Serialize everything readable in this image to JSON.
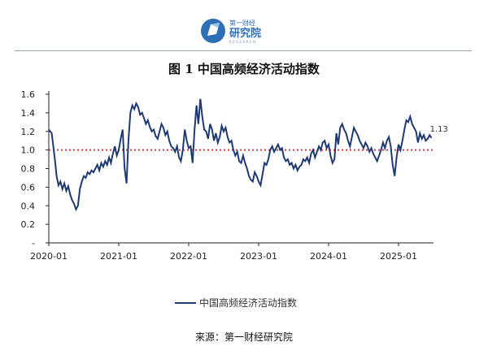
{
  "header": {
    "logo_line1": "第一财经",
    "logo_line2": "研究院",
    "logo_line3": "RESEARCH",
    "title": "图 1  中国高频经济活动指数"
  },
  "footer": {
    "source": "来源：第一财经研究院"
  },
  "colors": {
    "series": "#1f3a73",
    "reference": "#d0393e",
    "logo_blue": "#2e6fb7"
  },
  "chart_data": {
    "type": "line",
    "title": "图 1  中国高频经济活动指数",
    "xlabel": "",
    "ylabel": "",
    "x_ticks": [
      "2020-01",
      "2021-01",
      "2022-01",
      "2023-01",
      "2024-01",
      "2025-01"
    ],
    "y_ticks": [
      "-",
      "0.2",
      "0.4",
      "0.6",
      "0.8",
      "1.0",
      "1.2",
      "1.4",
      "1.6"
    ],
    "ylim": [
      0,
      1.6
    ],
    "x_range": [
      "2020-01",
      "2025-07"
    ],
    "reference_line": {
      "value": 1.0,
      "style": "dotted"
    },
    "end_label": "1.13",
    "legend": {
      "position": "bottom-center"
    },
    "grid": false,
    "series": [
      {
        "name": "中国高频经济活动指数",
        "points": [
          [
            "2020-01",
            1.22
          ],
          [
            "2020-01",
            1.18
          ],
          [
            "2020-02",
            0.92
          ],
          [
            "2020-02",
            0.72
          ],
          [
            "2020-02",
            0.62
          ],
          [
            "2020-03",
            0.66
          ],
          [
            "2020-03",
            0.58
          ],
          [
            "2020-03",
            0.64
          ],
          [
            "2020-04",
            0.56
          ],
          [
            "2020-04",
            0.61
          ],
          [
            "2020-04",
            0.52
          ],
          [
            "2020-05",
            0.46
          ],
          [
            "2020-05",
            0.42
          ],
          [
            "2020-05",
            0.36
          ],
          [
            "2020-06",
            0.4
          ],
          [
            "2020-06",
            0.58
          ],
          [
            "2020-06",
            0.66
          ],
          [
            "2020-07",
            0.72
          ],
          [
            "2020-07",
            0.7
          ],
          [
            "2020-07",
            0.76
          ],
          [
            "2020-08",
            0.74
          ],
          [
            "2020-08",
            0.78
          ],
          [
            "2020-08",
            0.76
          ],
          [
            "2020-09",
            0.8
          ],
          [
            "2020-09",
            0.84
          ],
          [
            "2020-09",
            0.78
          ],
          [
            "2020-10",
            0.86
          ],
          [
            "2020-10",
            0.82
          ],
          [
            "2020-10",
            0.88
          ],
          [
            "2020-11",
            0.84
          ],
          [
            "2020-11",
            0.92
          ],
          [
            "2020-11",
            0.86
          ],
          [
            "2020-12",
            0.96
          ],
          [
            "2020-12",
            1.04
          ],
          [
            "2020-12",
            0.94
          ],
          [
            "2021-01",
            1.0
          ],
          [
            "2021-01",
            1.12
          ],
          [
            "2021-01",
            1.22
          ],
          [
            "2021-02",
            0.8
          ],
          [
            "2021-02",
            0.64
          ],
          [
            "2021-02",
            1.1
          ],
          [
            "2021-03",
            1.4
          ],
          [
            "2021-03",
            1.48
          ],
          [
            "2021-03",
            1.44
          ],
          [
            "2021-04",
            1.5
          ],
          [
            "2021-04",
            1.46
          ],
          [
            "2021-04",
            1.38
          ],
          [
            "2021-05",
            1.4
          ],
          [
            "2021-05",
            1.34
          ],
          [
            "2021-05",
            1.28
          ],
          [
            "2021-06",
            1.32
          ],
          [
            "2021-06",
            1.25
          ],
          [
            "2021-06",
            1.2
          ],
          [
            "2021-07",
            1.22
          ],
          [
            "2021-07",
            1.15
          ],
          [
            "2021-07",
            1.12
          ],
          [
            "2021-08",
            1.2
          ],
          [
            "2021-08",
            1.28
          ],
          [
            "2021-08",
            1.24
          ],
          [
            "2021-09",
            1.16
          ],
          [
            "2021-09",
            1.2
          ],
          [
            "2021-09",
            1.1
          ],
          [
            "2021-10",
            1.04
          ],
          [
            "2021-10",
            1.02
          ],
          [
            "2021-10",
            0.98
          ],
          [
            "2021-11",
            1.04
          ],
          [
            "2021-11",
            0.92
          ],
          [
            "2021-11",
            0.88
          ],
          [
            "2021-12",
            1.0
          ],
          [
            "2021-12",
            1.22
          ],
          [
            "2021-12",
            1.1
          ],
          [
            "2022-01",
            1.02
          ],
          [
            "2022-01",
            1.04
          ],
          [
            "2022-01",
            0.86
          ],
          [
            "2022-02",
            1.22
          ],
          [
            "2022-02",
            1.48
          ],
          [
            "2022-02",
            1.28
          ],
          [
            "2022-03",
            1.55
          ],
          [
            "2022-03",
            1.36
          ],
          [
            "2022-03",
            1.22
          ],
          [
            "2022-04",
            1.2
          ],
          [
            "2022-04",
            1.12
          ],
          [
            "2022-04",
            1.28
          ],
          [
            "2022-05",
            1.22
          ],
          [
            "2022-05",
            1.1
          ],
          [
            "2022-05",
            1.18
          ],
          [
            "2022-06",
            1.08
          ],
          [
            "2022-06",
            1.14
          ],
          [
            "2022-06",
            1.26
          ],
          [
            "2022-07",
            1.2
          ],
          [
            "2022-07",
            1.24
          ],
          [
            "2022-07",
            1.14
          ],
          [
            "2022-08",
            1.08
          ],
          [
            "2022-08",
            1.1
          ],
          [
            "2022-08",
            1.0
          ],
          [
            "2022-09",
            0.94
          ],
          [
            "2022-09",
            0.98
          ],
          [
            "2022-09",
            0.88
          ],
          [
            "2022-10",
            0.86
          ],
          [
            "2022-10",
            0.94
          ],
          [
            "2022-10",
            0.86
          ],
          [
            "2022-11",
            0.8
          ],
          [
            "2022-11",
            0.72
          ],
          [
            "2022-11",
            0.68
          ],
          [
            "2022-12",
            0.66
          ],
          [
            "2022-12",
            0.76
          ],
          [
            "2022-12",
            0.72
          ],
          [
            "2023-01",
            0.66
          ],
          [
            "2023-01",
            0.62
          ],
          [
            "2023-01",
            0.74
          ],
          [
            "2023-02",
            0.86
          ],
          [
            "2023-02",
            0.84
          ],
          [
            "2023-02",
            0.9
          ],
          [
            "2023-03",
            1.0
          ],
          [
            "2023-03",
            1.04
          ],
          [
            "2023-03",
            0.98
          ],
          [
            "2023-04",
            1.02
          ],
          [
            "2023-04",
            1.06
          ],
          [
            "2023-04",
            1.0
          ],
          [
            "2023-05",
            1.02
          ],
          [
            "2023-05",
            0.92
          ],
          [
            "2023-05",
            0.88
          ],
          [
            "2023-06",
            0.9
          ],
          [
            "2023-06",
            0.84
          ],
          [
            "2023-06",
            0.86
          ],
          [
            "2023-07",
            0.8
          ],
          [
            "2023-07",
            0.84
          ],
          [
            "2023-07",
            0.78
          ],
          [
            "2023-08",
            0.82
          ],
          [
            "2023-08",
            0.84
          ],
          [
            "2023-08",
            0.9
          ],
          [
            "2023-09",
            0.88
          ],
          [
            "2023-09",
            0.92
          ],
          [
            "2023-09",
            0.86
          ],
          [
            "2023-10",
            0.96
          ],
          [
            "2023-10",
            1.0
          ],
          [
            "2023-10",
            0.92
          ],
          [
            "2023-11",
            0.98
          ],
          [
            "2023-11",
            1.04
          ],
          [
            "2023-11",
            1.0
          ],
          [
            "2023-12",
            1.08
          ],
          [
            "2023-12",
            1.1
          ],
          [
            "2023-12",
            1.02
          ],
          [
            "2024-01",
            1.06
          ],
          [
            "2024-01",
            0.94
          ],
          [
            "2024-01",
            0.86
          ],
          [
            "2024-02",
            0.9
          ],
          [
            "2024-02",
            1.18
          ],
          [
            "2024-02",
            1.06
          ],
          [
            "2024-03",
            1.24
          ],
          [
            "2024-03",
            1.28
          ],
          [
            "2024-03",
            1.22
          ],
          [
            "2024-04",
            1.18
          ],
          [
            "2024-04",
            1.1
          ],
          [
            "2024-04",
            1.04
          ],
          [
            "2024-05",
            1.14
          ],
          [
            "2024-05",
            1.24
          ],
          [
            "2024-05",
            1.2
          ],
          [
            "2024-06",
            1.16
          ],
          [
            "2024-06",
            1.1
          ],
          [
            "2024-06",
            1.06
          ],
          [
            "2024-07",
            1.02
          ],
          [
            "2024-07",
            1.08
          ],
          [
            "2024-07",
            1.04
          ],
          [
            "2024-08",
            0.98
          ],
          [
            "2024-08",
            1.02
          ],
          [
            "2024-08",
            0.96
          ],
          [
            "2024-09",
            0.92
          ],
          [
            "2024-09",
            0.88
          ],
          [
            "2024-09",
            0.94
          ],
          [
            "2024-10",
            1.0
          ],
          [
            "2024-10",
            1.08
          ],
          [
            "2024-10",
            1.02
          ],
          [
            "2024-11",
            1.1
          ],
          [
            "2024-11",
            1.14
          ],
          [
            "2024-11",
            1.04
          ],
          [
            "2024-12",
            0.84
          ],
          [
            "2024-12",
            0.72
          ],
          [
            "2024-12",
            0.92
          ],
          [
            "2025-01",
            1.06
          ],
          [
            "2025-01",
            1.0
          ],
          [
            "2025-01",
            1.1
          ],
          [
            "2025-02",
            1.22
          ],
          [
            "2025-02",
            1.32
          ],
          [
            "2025-02",
            1.3
          ],
          [
            "2025-03",
            1.36
          ],
          [
            "2025-03",
            1.28
          ],
          [
            "2025-03",
            1.24
          ],
          [
            "2025-04",
            1.2
          ],
          [
            "2025-04",
            1.08
          ],
          [
            "2025-04",
            1.18
          ],
          [
            "2025-05",
            1.12
          ],
          [
            "2025-05",
            1.16
          ],
          [
            "2025-05",
            1.1
          ],
          [
            "2025-06",
            1.12
          ],
          [
            "2025-06",
            1.16
          ],
          [
            "2025-06",
            1.13
          ]
        ]
      }
    ]
  }
}
